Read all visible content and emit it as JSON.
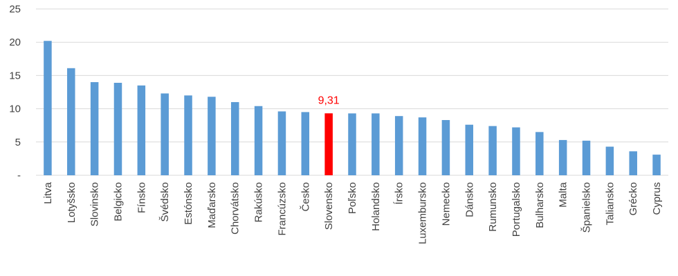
{
  "chart_data": {
    "type": "bar",
    "categories": [
      "Litva",
      "Lotyšsko",
      "Slovinsko",
      "Belgicko",
      "Fínsko",
      "Švédsko",
      "Estónsko",
      "Maďarsko",
      "Chorvátsko",
      "Rakúsko",
      "Francúzsko",
      "Česko",
      "Slovensko",
      "Poľsko",
      "Holandsko",
      "Írsko",
      "Luxembursko",
      "Nemecko",
      "Dánsko",
      "Rumunsko",
      "Portugalsko",
      "Bulharsko",
      "Malta",
      "Španielsko",
      "Taliansko",
      "Grécko",
      "Cyprus"
    ],
    "values": [
      20.2,
      16.1,
      14.0,
      13.9,
      13.5,
      12.3,
      12.0,
      11.8,
      11.0,
      10.4,
      9.6,
      9.5,
      9.31,
      9.3,
      9.3,
      8.9,
      8.7,
      8.3,
      7.6,
      7.4,
      7.2,
      6.5,
      5.3,
      5.2,
      4.3,
      3.6,
      3.1
    ],
    "ylim": [
      0,
      25
    ],
    "y_ticks": [
      0,
      5,
      10,
      15,
      20,
      25
    ],
    "y_tick_labels": [
      "-",
      "5",
      "10",
      "15",
      "20",
      "25"
    ],
    "grid": true,
    "bar_color": "#5b9bd5",
    "highlight": {
      "category": "Slovensko",
      "color": "#ff0000",
      "label": "9,31"
    }
  }
}
